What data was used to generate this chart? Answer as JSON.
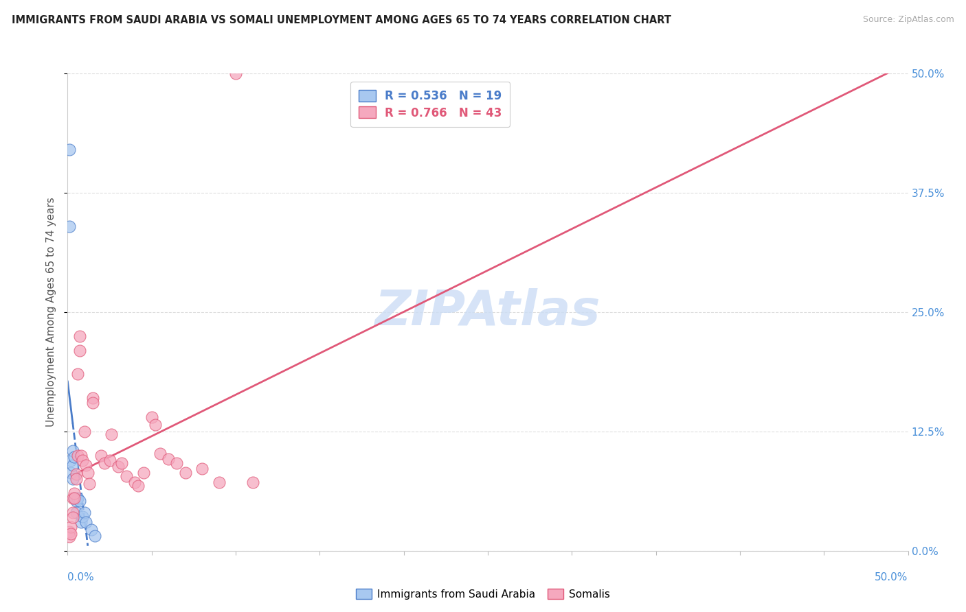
{
  "title": "IMMIGRANTS FROM SAUDI ARABIA VS SOMALI UNEMPLOYMENT AMONG AGES 65 TO 74 YEARS CORRELATION CHART",
  "source": "Source: ZipAtlas.com",
  "ylabel_label": "Unemployment Among Ages 65 to 74 years",
  "legend1_r": "R = 0.536",
  "legend1_n": "N = 19",
  "legend2_r": "R = 0.766",
  "legend2_n": "N = 43",
  "blue_color": "#a8c8f0",
  "pink_color": "#f5a8be",
  "trendline_blue": "#4a7cc9",
  "trendline_pink": "#e05878",
  "watermark_color": "#ccddf5",
  "blue_scatter_x": [
    0.001,
    0.001,
    0.002,
    0.002,
    0.003,
    0.003,
    0.003,
    0.004,
    0.004,
    0.005,
    0.005,
    0.006,
    0.007,
    0.008,
    0.009,
    0.01,
    0.011,
    0.014,
    0.016
  ],
  "blue_scatter_y": [
    0.42,
    0.34,
    0.095,
    0.082,
    0.105,
    0.09,
    0.075,
    0.098,
    0.055,
    0.052,
    0.04,
    0.055,
    0.052,
    0.03,
    0.036,
    0.04,
    0.03,
    0.022,
    0.016
  ],
  "pink_scatter_x": [
    0.001,
    0.001,
    0.002,
    0.002,
    0.003,
    0.003,
    0.003,
    0.004,
    0.004,
    0.005,
    0.005,
    0.006,
    0.006,
    0.007,
    0.007,
    0.008,
    0.009,
    0.01,
    0.011,
    0.012,
    0.013,
    0.015,
    0.015,
    0.02,
    0.022,
    0.025,
    0.026,
    0.03,
    0.032,
    0.035,
    0.04,
    0.042,
    0.045,
    0.05,
    0.052,
    0.055,
    0.06,
    0.065,
    0.07,
    0.08,
    0.09,
    0.1,
    0.11
  ],
  "pink_scatter_y": [
    0.02,
    0.015,
    0.025,
    0.018,
    0.055,
    0.04,
    0.035,
    0.06,
    0.055,
    0.08,
    0.075,
    0.185,
    0.1,
    0.225,
    0.21,
    0.1,
    0.095,
    0.125,
    0.09,
    0.082,
    0.07,
    0.16,
    0.155,
    0.1,
    0.092,
    0.095,
    0.122,
    0.088,
    0.092,
    0.078,
    0.072,
    0.068,
    0.082,
    0.14,
    0.132,
    0.102,
    0.096,
    0.092,
    0.082,
    0.086,
    0.072,
    0.5,
    0.072
  ],
  "xlim": [
    0.0,
    0.5
  ],
  "ylim": [
    0.0,
    0.5
  ],
  "yticks": [
    0.0,
    0.125,
    0.25,
    0.375,
    0.5
  ],
  "xticks_minor": [
    0.05,
    0.1,
    0.15,
    0.2,
    0.25,
    0.3,
    0.35,
    0.4,
    0.45
  ]
}
